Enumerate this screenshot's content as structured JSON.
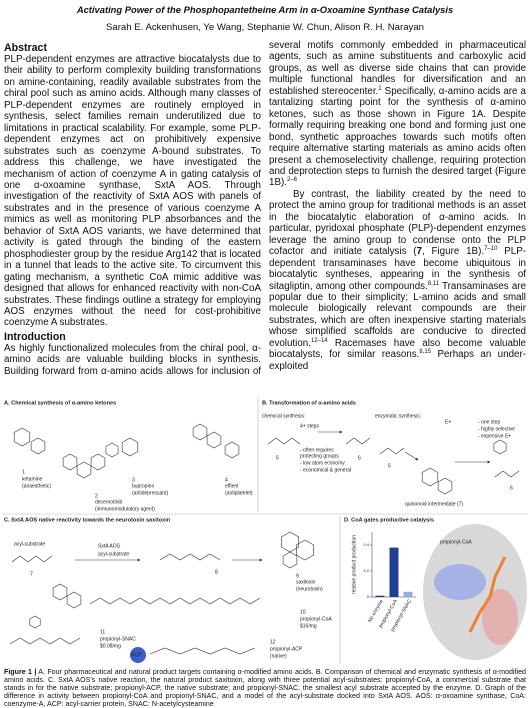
{
  "header": {
    "title": "Activating Power of the Phosphopantetheine Arm in α-Oxoamine Synthase Catalysis",
    "authors": "Sarah E. Ackenhusen, Ye Wang, Stephanie W. Chun, Alison R. H. Narayan"
  },
  "body": {
    "abstract": {
      "heading": "Abstract",
      "paragraphs": [
        [
          {
            "text": "PLP-dependent enzymes are attractive biocatalysts due to their ability to perform complexity building transformations on amine-containing, readily available substrates from the chiral pool such as amino acids. Although many classes of PLP-dependent enzymes are routinely employed in synthesis, select families remain underutilized due to limitations in practical scalability. For example, some PLP-dependent enzymes act on prohibitively expensive substrates such as coenzyme A-bound substrates. To address this challenge, we have investigated the mechanism of action of coenzyme A in gating catalysis of one α-oxoamine synthase, SxtA AOS. Through investigation of the reactivity of SxtA AOS with panels of substrates and in the presence of various coenzyme A mimics as well as monitoring PLP absorbances and the behavior of SxtA AOS variants, we have determined that activity is gated through the binding of the eastern phosphodiester group by the residue Arg142 that is located in a tunnel that leads to the active site. To circumvent this gating mechanism, a synthetic CoA mimic additive was designed that allows for enhanced reactivity with non-CoA substrates. These findings outline a strategy for employing AOS enzymes without the need for cost-prohibitive coenzyme A substrates."
          }
        ]
      ]
    },
    "introduction": {
      "heading": "Introduction",
      "paragraphs": [
        [
          {
            "text": "As highly functionalized molecules from the chiral pool, α-amino acids are valuable building blocks in synthesis. Building forward from α-amino acids allows for inclusion of several motifs commonly embedded in pharmaceutical agents, such as amine substituents and carboxylic acid groups, as well as diverse side chains that can provide multiple functional handles for diversification and an established stereocenter."
          },
          {
            "text": "1",
            "style": "sup"
          },
          {
            "text": " Specifically, α-amino acids are a tantalizing starting point for the synthesis of α-amino ketones, such as those shown in Figure 1A. Despite formally requiring breaking one bond and forming just one bond, synthetic approaches towards such motifs often require alternative starting materials as amino acids often present a chemoselectivity challenge, requiring protection and deprotection steps to furnish the desired target (Figure 1B)."
          },
          {
            "text": "2–6",
            "style": "sup"
          }
        ],
        [
          {
            "text": "By contrast, the liability created by the need to protect the amino group for traditional methods is an asset in the biocatalytic elaboration of α-amino acids. In particular, pyridoxal phosphate (PLP)-dependent enzymes leverage the amino group to condense onto the PLP cofactor and initiate catalysis ("
          },
          {
            "text": "7",
            "style": "bold"
          },
          {
            "text": ", Figure 1B)."
          },
          {
            "text": "7–10",
            "style": "sup"
          },
          {
            "text": " PLP-dependent transaminases have become ubiquitous in biocatalytic syntheses, appearing in the synthesis of sitagliptin, among other compounds."
          },
          {
            "text": "8,11",
            "style": "sup"
          },
          {
            "text": " Transaminases are popular due to their simplicity; L-amino acids and small molecule biologically relevant compounds are their substrates, which are often inexpensive starting materials whose simplified scaffolds are conducive to directed evolution."
          },
          {
            "text": "12–14",
            "style": "sup"
          },
          {
            "text": " Racemases have also become valuable biocatalysts, for similar reasons."
          },
          {
            "text": "8,15",
            "style": "sup"
          },
          {
            "text": " Perhaps an under-exploited"
          }
        ]
      ]
    }
  },
  "figure": {
    "a": {
      "title": "A. Chemical synthesis of α-amino ketones",
      "labels": [
        "1",
        "ketamine",
        "(anaesthetic)",
        "2",
        "decernotinib",
        "(immunomodulatory agent)",
        "3",
        "bupropion",
        "(antidepressant)",
        "4",
        "effient",
        "(antiplatelet)"
      ]
    },
    "b": {
      "title": "B. Transformation of α-amino acids",
      "labels": [
        "chemical synthesis:",
        "4+ steps",
        "- often requires",
        "protecting groups",
        "- low atom economy",
        "- economical & general",
        "5",
        "6",
        "enzymatic synthesis:",
        "E+",
        "- one step",
        "- highly selective",
        "- expensive E+",
        "quinonoid intermediate (7)",
        "5",
        "6"
      ]
    },
    "c": {
      "title": "C. SxtA AOS native reactivity towards the neurotoxin saxitoxin",
      "labels": [
        "acyl-substrate",
        "7",
        "SxtA AOS",
        "acyl-substrate",
        "8",
        "9",
        "saxitoxin",
        "(neurotoxin)",
        "10",
        "propionyl-CoA",
        "$16/mg",
        "11",
        "propionyl-SNAC",
        "$0.08/mg",
        "ACP",
        "12",
        "propionyl-ACP",
        "(native)"
      ]
    },
    "d": {
      "title": "D. CoA gates productive catalysis",
      "labels": [
        "propionyl-CoA"
      ]
    },
    "caption": [
      {
        "text": "Figure 1 |",
        "style": "bold"
      },
      {
        "text": " A. Four pharmaceutical and natural product targets containing α-modified amino acids. B. Comparison of chemical and enzymatic synthesis of α-modified amino acids. C. SxtA AOS's native reaction, the natural product saxitoxin, along with three potential acyl-substrates: propionyl-CoA, a commercial substrate that stands in for the native substrate; propionyl-ACP, the native substrate; and propionyl-SNAC, the smallest acyl substrate accepted by the enzyme. D. Graph of the difference in activity between propionyl-CoA and propionyl-SNAC, and a model of the acyl-substrate docked into SxtA AOS. AOS: α-oxoamine synthase, CoA: coenzyme-A, ACP: acyl-carrier protein, SNAC: N-acetylcysteamine"
      }
    ]
  },
  "chart_data": {
    "type": "bar",
    "y_label": "relative product production",
    "categories": [
      "No enzyme",
      "propionyl-CoA",
      "propionyl-SNAC"
    ],
    "values": [
      0.01,
      0.38,
      0.04
    ],
    "colors": [
      "#1f3f8f",
      "#1f3f8f",
      "#8fb0e0"
    ],
    "ylim": [
      0,
      0.5
    ],
    "yticks": [
      0,
      0.2,
      0.4
    ]
  }
}
